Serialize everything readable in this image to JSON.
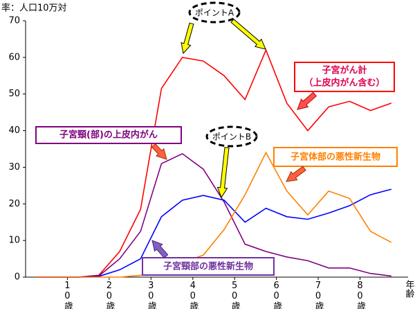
{
  "chart_data": {
    "type": "line",
    "ylabel": "率：人口10万対",
    "xlabel": "年齢",
    "x": [
      2.5,
      7.5,
      12.5,
      17.5,
      22.5,
      27.5,
      32.5,
      37.5,
      42.5,
      47.5,
      52.5,
      57.5,
      62.5,
      67.5,
      72.5,
      77.5,
      82.5,
      87.5
    ],
    "xlim": [
      0,
      91.5
    ],
    "xticks": [
      {
        "value": 10,
        "label": "10歳"
      },
      {
        "value": 20,
        "label": "20歳"
      },
      {
        "value": 30,
        "label": "30歳"
      },
      {
        "value": 40,
        "label": "40歳"
      },
      {
        "value": 50,
        "label": "50歳"
      },
      {
        "value": 60,
        "label": "60歳"
      },
      {
        "value": 70,
        "label": "70歳"
      },
      {
        "value": 80,
        "label": "80歳"
      }
    ],
    "ylim": [
      0,
      70
    ],
    "yticks": [
      0,
      10,
      20,
      30,
      40,
      50,
      60,
      70
    ],
    "grid": false,
    "series": [
      {
        "name": "子宮がん計",
        "color": "#ff0000",
        "values": [
          0,
          0,
          0,
          0.5,
          7,
          18.5,
          51.5,
          60,
          59,
          55,
          48.5,
          62,
          47.5,
          40,
          46.5,
          48,
          45.5,
          47.5
        ]
      },
      {
        "name": "子宮頸(部)の上皮内がん",
        "color": "#800080",
        "values": [
          0,
          0,
          0,
          0.3,
          5,
          12.5,
          31,
          33.7,
          29.5,
          20.5,
          9,
          7,
          5.5,
          4.5,
          2.5,
          2.5,
          1,
          0.3
        ]
      },
      {
        "name": "子宮頸部の悪性新生物",
        "color": "#0000ff",
        "values": [
          0,
          0,
          0,
          0.2,
          2,
          5,
          16.5,
          21,
          22.3,
          21,
          15,
          18.8,
          16.5,
          15.8,
          17.5,
          19.5,
          22.5,
          24
        ]
      },
      {
        "name": "子宮体部の悪性新生物",
        "color": "#ff8000",
        "values": [
          0,
          0,
          0,
          0,
          0,
          0.5,
          1.5,
          4,
          6,
          13,
          22.5,
          34,
          23.5,
          17,
          23.5,
          21.5,
          12.5,
          9.5
        ]
      }
    ],
    "annotations": [
      "（上皮内がん含む）",
      "ポイントA",
      "ポイントB"
    ]
  }
}
